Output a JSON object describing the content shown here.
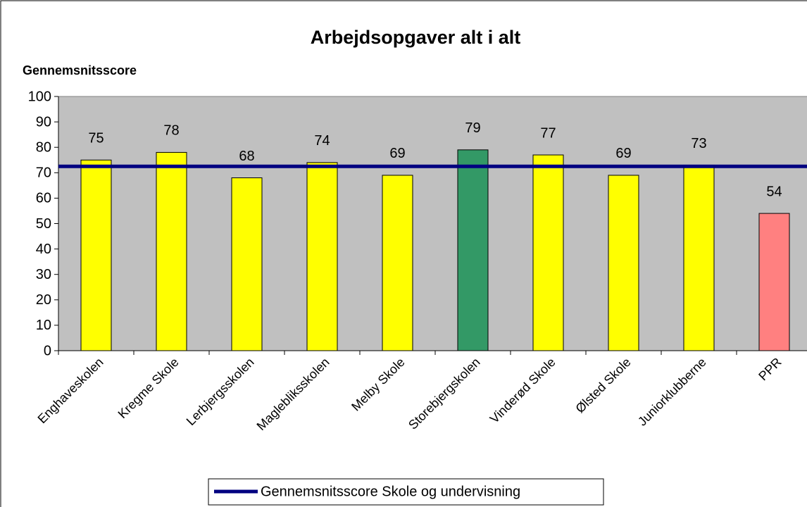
{
  "chart_data": {
    "type": "bar",
    "title": "Arbejdsopgaver alt i alt",
    "y_label": "Gennemsnitsscore",
    "categories": [
      "Enghaveskolen",
      "Kregme Skole",
      "Lerbjergsskolen",
      "Maglebliksskolen",
      "Melby Skole",
      "Storebjergskolen",
      "Vinderød Skole",
      "Ølsted Skole",
      "Juniorklubberne",
      "PPR"
    ],
    "values": [
      75,
      78,
      68,
      74,
      69,
      79,
      77,
      69,
      73,
      54
    ],
    "colors": [
      "#ffff00",
      "#ffff00",
      "#ffff00",
      "#ffff00",
      "#ffff00",
      "#339966",
      "#ffff00",
      "#ffff00",
      "#ffff00",
      "#ff8080"
    ],
    "line_series": {
      "name": "Gennemsnitsscore Skole og undervisning",
      "color": "#000080",
      "values": [
        72.5,
        72.5,
        72.5,
        72.5,
        72.5,
        72.5,
        72.5,
        72.5,
        72.5,
        72.5
      ]
    },
    "ylim": [
      0,
      100
    ],
    "yticks": [
      0,
      10,
      20,
      30,
      40,
      50,
      60,
      70,
      80,
      90,
      100
    ],
    "plot_background": "#c0c0c0"
  }
}
